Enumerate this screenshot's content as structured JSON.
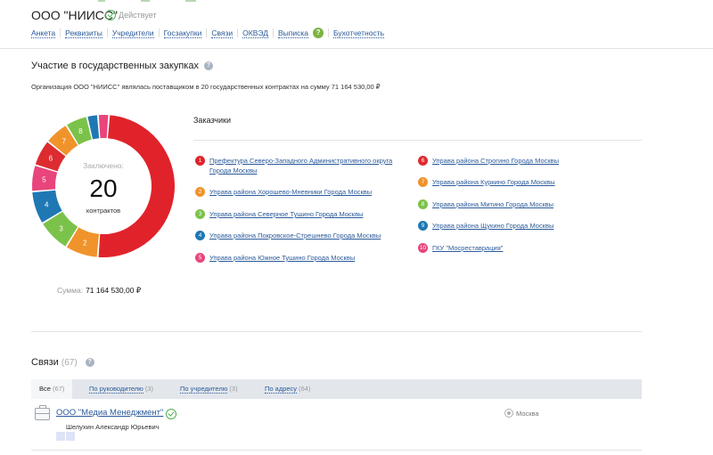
{
  "company": {
    "title": "ООО \"НИИСС\"",
    "status": "Действует"
  },
  "nav": {
    "items": [
      "Анкета",
      "Реквизиты",
      "Учредители",
      "Госзакупки",
      "Связи",
      "ОКВЭД",
      "Выписка",
      "Бухотчетность"
    ],
    "help_glyph": "?"
  },
  "procurement": {
    "title": "Участие в государственных закупках",
    "help_glyph": "?",
    "summary": "Организация ООО \"НИИСС\" являлась поставщиком в 20 государственных контрактах на сумму 71 164 530,00 ₽",
    "concluded_label": "Заключено:",
    "contracts_count": "20",
    "contracts_unit": "контрактов",
    "sum_label": "Сумма:",
    "sum_value": "71 164 530,00 ₽"
  },
  "chart_data": {
    "type": "pie",
    "donut": true,
    "total": 20,
    "segments": [
      {
        "label": "1",
        "value": 10.0,
        "color": "#e0232b"
      },
      {
        "label": "2",
        "value": 1.5,
        "color": "#f0932b"
      },
      {
        "label": "3",
        "value": 1.5,
        "color": "#7bc24a"
      },
      {
        "label": "4",
        "value": 1.5,
        "color": "#1f78b4"
      },
      {
        "label": "5",
        "value": 1.2,
        "color": "#e8457c"
      },
      {
        "label": "6",
        "value": 1.2,
        "color": "#dd2c30"
      },
      {
        "label": "7",
        "value": 1.1,
        "color": "#f0932b"
      },
      {
        "label": "8",
        "value": 1.0,
        "color": "#7bc24a"
      },
      {
        "label": "9",
        "value": 0.5,
        "color": "#1f78b4"
      },
      {
        "label": "10",
        "value": 0.5,
        "color": "#e8457c"
      }
    ]
  },
  "customers": {
    "title": "Заказчики",
    "items": [
      {
        "num": "1",
        "name": "Префектура Северо-Западного Административного округа Города Москвы",
        "color": "#e0232b"
      },
      {
        "num": "2",
        "name": "Управа района Хорошево-Мневники Города Москвы",
        "color": "#f0932b"
      },
      {
        "num": "3",
        "name": "Управа района Северное Тушино Города Москвы",
        "color": "#7bc24a"
      },
      {
        "num": "4",
        "name": "Управа района Покровское-Стрешнево Города Москвы",
        "color": "#1f78b4"
      },
      {
        "num": "5",
        "name": "Управа района Южное Тушино Города Москвы",
        "color": "#e8457c"
      },
      {
        "num": "6",
        "name": "Управа района Строгино Города Москвы",
        "color": "#dd2c30"
      },
      {
        "num": "7",
        "name": "Управа района Куркино Города Москвы",
        "color": "#f0932b"
      },
      {
        "num": "8",
        "name": "Управа района Митино Города Москвы",
        "color": "#7bc24a"
      },
      {
        "num": "9",
        "name": "Управа района Щукино Города Москвы",
        "color": "#1f78b4"
      },
      {
        "num": "10",
        "name": "ГКУ \"Мосреставрация\"",
        "color": "#e8457c"
      }
    ]
  },
  "connections": {
    "title": "Связи",
    "count": "(67)",
    "help_glyph": "?",
    "tabs": [
      {
        "label": "Все",
        "count": "(67)"
      },
      {
        "label": "По руководителю",
        "count": "(3)"
      },
      {
        "label": "По учредителю",
        "count": "(3)"
      },
      {
        "label": "По адресу",
        "count": "(64)"
      }
    ],
    "entry": {
      "name": "ООО \"Медиа Менеджмент\"",
      "person": "Шелухин Александр Юрьевич",
      "city": "Москва"
    }
  }
}
